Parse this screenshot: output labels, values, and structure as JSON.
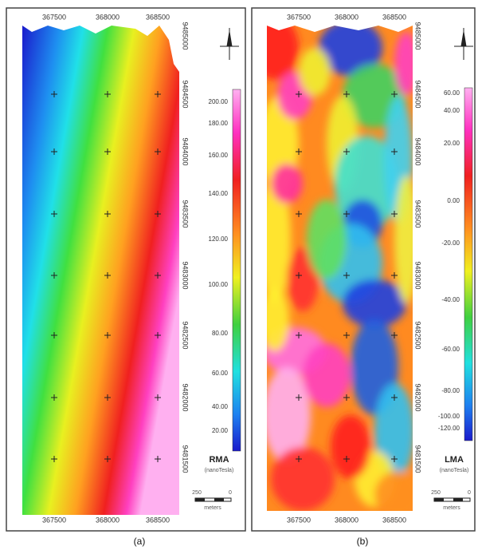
{
  "panels": [
    {
      "caption": "(a)",
      "x_labels": [
        "367500",
        "368000",
        "368500"
      ],
      "y_labels": [
        "9485000",
        "9484500",
        "9484000",
        "9483500",
        "9483000",
        "9482500",
        "9482000",
        "9481500"
      ],
      "legend": {
        "title": "RMA",
        "unit": "(nanoTesla)",
        "labels": [
          "200.00",
          "180.00",
          "160.00",
          "140.00",
          "120.00",
          "100.00",
          "80.00",
          "60.00",
          "40.00",
          "20.00"
        ]
      },
      "scale": {
        "left": "250",
        "right": "0",
        "unit": "meters"
      }
    },
    {
      "caption": "(b)",
      "x_labels": [
        "367500",
        "368000",
        "368500"
      ],
      "y_labels": [
        "9485000",
        "9484500",
        "9484000",
        "9483500",
        "9483000",
        "9482500",
        "9482000",
        "9481500"
      ],
      "legend": {
        "title": "LMA",
        "unit": "(nanoTesla)",
        "labels": [
          "60.00",
          "40.00",
          "20.00",
          "0.00",
          "-20.00",
          "-40.00",
          "-60.00",
          "-80.00",
          "-100.00",
          "-120.00"
        ]
      },
      "scale": {
        "left": "250",
        "right": "0",
        "unit": "meters"
      }
    }
  ]
}
